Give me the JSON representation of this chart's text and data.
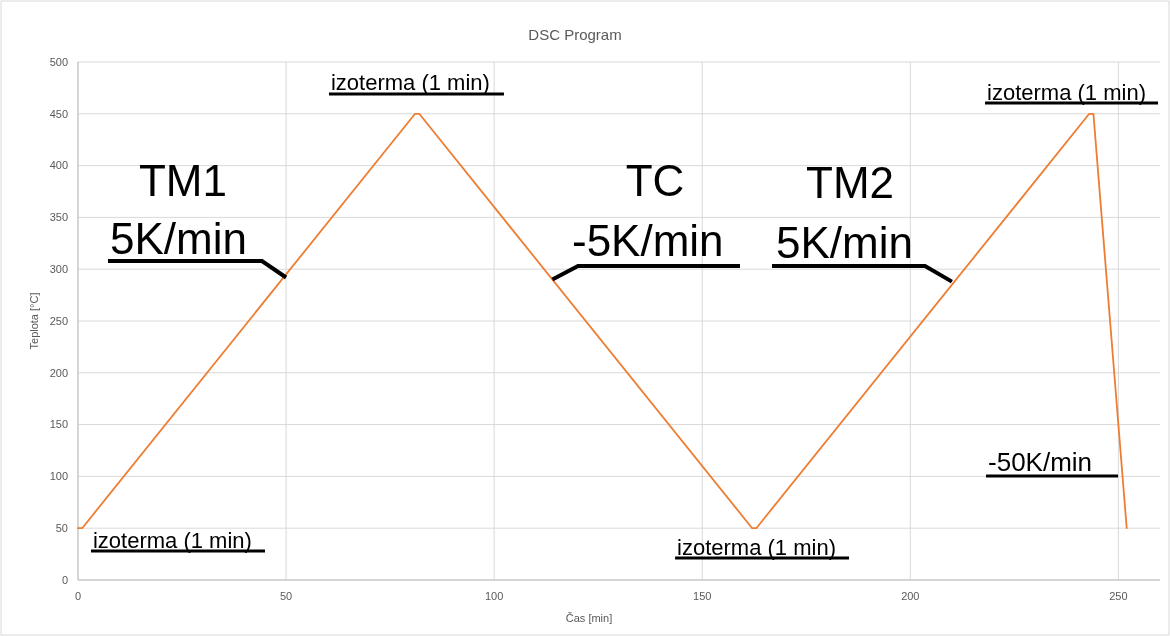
{
  "chart_data": {
    "type": "line",
    "title": "DSC Program",
    "xlabel": "Čas [min]",
    "ylabel": "Teplota [°C]",
    "x": [
      0,
      1,
      81,
      82,
      162,
      163,
      243,
      244,
      252
    ],
    "series": [
      {
        "color": "#ed7d31",
        "values": [
          50,
          50,
          450,
          450,
          50,
          50,
          450,
          450,
          50
        ]
      }
    ],
    "xlim": [
      0,
      260
    ],
    "xticks": [
      0,
      50,
      100,
      150,
      200,
      250
    ],
    "ylim": [
      0,
      500
    ],
    "yticks": [
      0,
      50,
      100,
      150,
      200,
      250,
      300,
      350,
      400,
      450,
      500
    ],
    "grid": true,
    "marker": "none",
    "line_style": "solid",
    "annotations": [
      {
        "text": "izoterma (1 min)",
        "x": 0.5,
        "y": 50
      },
      "TM1",
      {
        "text": "5K/min",
        "x": 50,
        "y": 292
      },
      {
        "text": "izoterma (1 min)",
        "x": 81.5,
        "y": 450
      },
      "TC",
      {
        "text": "-5K/min",
        "x": 114,
        "y": 290
      },
      {
        "text": "izoterma (1 min)",
        "x": 162.5,
        "y": 50
      },
      "TM2",
      {
        "text": "5K/min",
        "x": 210,
        "y": 288
      },
      {
        "text": "izoterma (1 min)",
        "x": 243.5,
        "y": 450
      },
      {
        "text": "-50K/min",
        "x": 250.3,
        "y": 100
      }
    ]
  }
}
